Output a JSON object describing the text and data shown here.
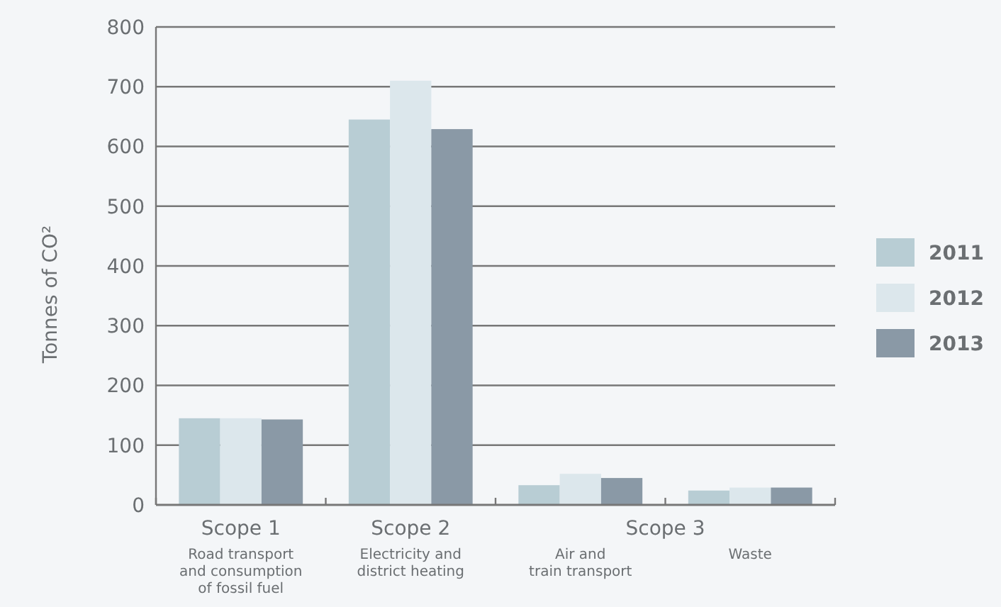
{
  "chart_data": {
    "type": "bar",
    "ylabel": "Tonnes of CO²",
    "categories": [
      "Scope 1\nRoad transport\nand consumption\nof fossil fuel",
      "Scope 2\nElectricity and\ndistrict heating",
      "Air and\ntrain transport",
      "Waste"
    ],
    "series": [
      {
        "name": "2011",
        "color": "#b8cdd4",
        "values": [
          145,
          645,
          33,
          24
        ]
      },
      {
        "name": "2012",
        "color": "#dce7ec",
        "values": [
          145,
          710,
          52,
          29
        ]
      },
      {
        "name": "2013",
        "color": "#8a99a6",
        "values": [
          143,
          629,
          45,
          29
        ]
      }
    ],
    "annotations": [
      "Scope 3"
    ],
    "ylim": [
      0,
      800
    ],
    "yticks": [
      0,
      100,
      200,
      300,
      400,
      500,
      600,
      700,
      800
    ],
    "grid": "y",
    "legend": "right"
  }
}
